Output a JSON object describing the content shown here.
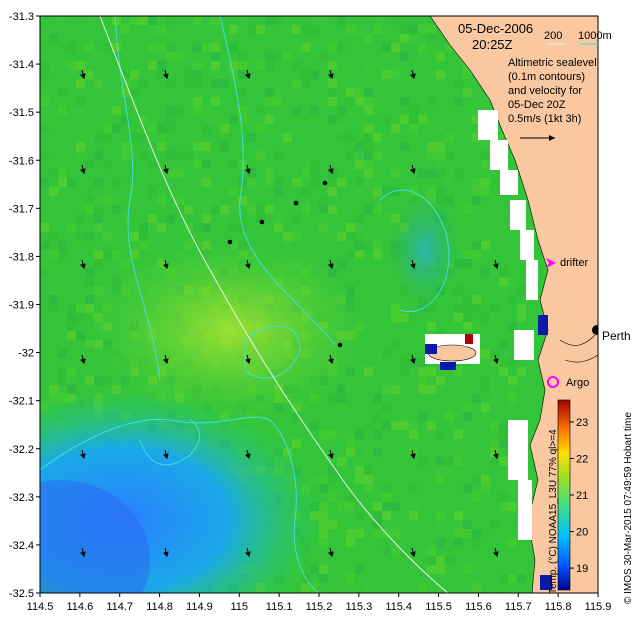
{
  "map": {
    "date": "05-Dec-2006",
    "time": "20:25Z",
    "depth_legend": {
      "label_200": "200",
      "label_1000": "1000m"
    },
    "altimetry_lines": [
      "Altimetric sealevel",
      "(0.1m contours)",
      "and velocity for",
      "05-Dec 20Z"
    ],
    "velocity_scale": "0.5m/s (1kt 3h)",
    "labels": {
      "drifter": "drifter",
      "perth": "Perth",
      "argo": "Argo"
    },
    "credit": "© IMOS 30-Mar-2015 07:49:59 Hobart time",
    "colorbar": {
      "title": "Temp. (°C) NOAA15_L3U 77% ql>=4",
      "ticks": [
        "19",
        "20",
        "21",
        "22",
        "23"
      ],
      "range": [
        18.4,
        23.6
      ]
    },
    "x_ticks": [
      "114.5",
      "114.6",
      "114.7",
      "114.8",
      "114.9",
      "115",
      "115.1",
      "115.2",
      "115.3",
      "115.4",
      "115.5",
      "115.6",
      "115.7",
      "115.8",
      "115.9"
    ],
    "y_ticks": [
      "-31.3",
      "-31.4",
      "-31.5",
      "-31.6",
      "-31.7",
      "-31.8",
      "-31.9",
      "-32",
      "-32.1",
      "-32.2",
      "-32.3",
      "-32.4",
      "-32.5"
    ],
    "colors": {
      "land": "#f9c8a0",
      "ocean_warm": "#33cc33",
      "ocean_cool": "#1a8cff",
      "contour": "#44dddd",
      "marker": "#ff00ff"
    }
  }
}
